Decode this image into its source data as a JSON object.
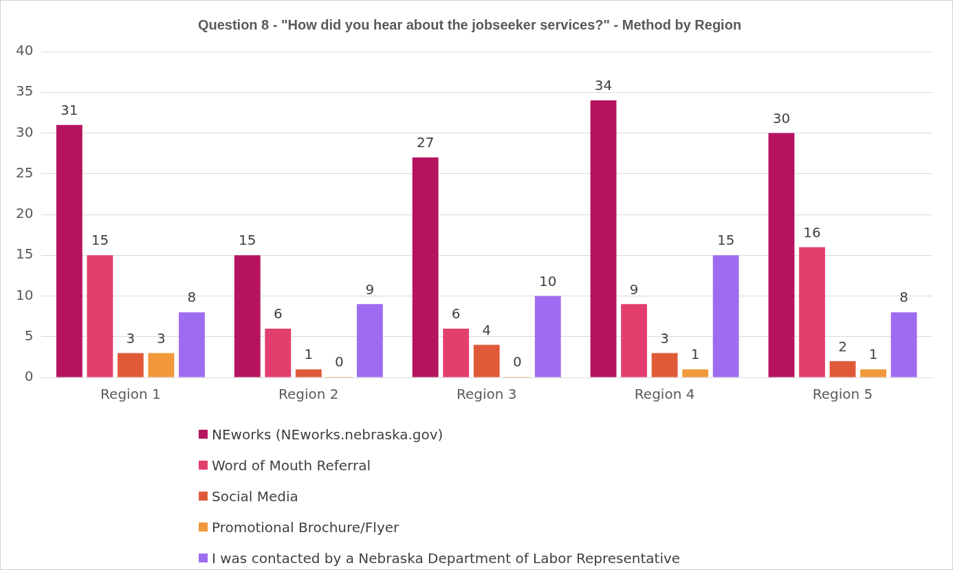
{
  "chart_data": {
    "type": "bar",
    "title": "Question 8 - \"How did you hear about the jobseeker services?\" - Method by Region",
    "categories": [
      "Region 1",
      "Region 2",
      "Region 3",
      "Region 4",
      "Region 5"
    ],
    "series": [
      {
        "name": "NEworks (NEworks.nebraska.gov)",
        "color": "#b5135f",
        "values": [
          31,
          15,
          27,
          34,
          30
        ]
      },
      {
        "name": "Word of Mouth Referral",
        "color": "#e33f6e",
        "values": [
          15,
          6,
          6,
          9,
          16
        ]
      },
      {
        "name": "Social Media",
        "color": "#e05a3a",
        "values": [
          3,
          1,
          4,
          3,
          2
        ]
      },
      {
        "name": "Promotional Brochure/Flyer",
        "color": "#f0983a",
        "values": [
          3,
          0,
          0,
          1,
          1
        ]
      },
      {
        "name": "I was contacted by a Nebraska Department of Labor Representative",
        "color": "#9e6cf0",
        "values": [
          8,
          9,
          10,
          15,
          8
        ]
      }
    ],
    "ylim": [
      0,
      40
    ],
    "yticks": [
      0,
      5,
      10,
      15,
      20,
      25,
      30,
      35,
      40
    ],
    "grid": "y",
    "legend": "bottom",
    "data_labels": true
  }
}
